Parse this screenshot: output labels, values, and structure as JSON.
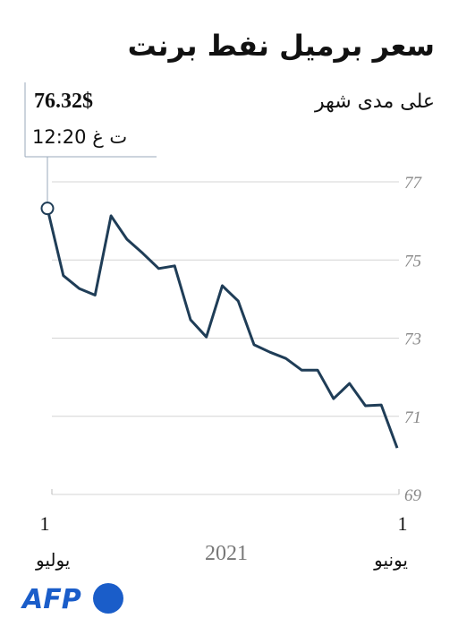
{
  "chart_data": {
    "type": "line",
    "title": "سعر برميل نفط برنت",
    "subtitle": "على مدى شهر",
    "callout": {
      "value": "76.32$",
      "time": "12:20 ت غ"
    },
    "x_start": {
      "day": "1",
      "month": "يونيو"
    },
    "x_end": {
      "day": "1",
      "month": "يوليو"
    },
    "year": "2021",
    "x_direction": "right-to-left",
    "series": [
      {
        "name": null,
        "color": "#1f3d57",
        "values": [
          70.19,
          71.29,
          71.27,
          71.84,
          71.45,
          72.18,
          72.18,
          72.48,
          72.64,
          72.83,
          73.95,
          74.34,
          73.03,
          73.47,
          74.85,
          74.78,
          75.17,
          75.53,
          76.13,
          74.1,
          74.27,
          74.6,
          76.32
        ]
      }
    ],
    "ylim": [
      69,
      77
    ],
    "yticks": [
      69,
      71,
      73,
      75,
      77
    ],
    "grid": true,
    "source": "AFP"
  }
}
